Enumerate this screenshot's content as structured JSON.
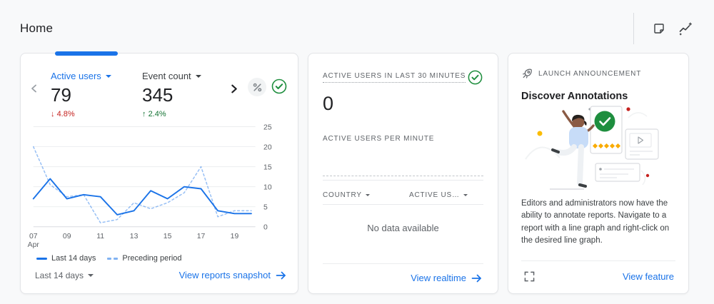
{
  "header": {
    "title": "Home",
    "icons": {
      "note": "customize-note-icon",
      "insights": "insights-sparkline-icon"
    }
  },
  "card_overview": {
    "metrics": [
      {
        "label": "Active users",
        "value": "79",
        "change_arrow": "↓",
        "change": "4.8%",
        "trend": "down"
      },
      {
        "label": "Event count",
        "value": "345",
        "change_arrow": "↑",
        "change": "2.4%",
        "trend": "up"
      }
    ],
    "range_selector": "Last 14 days",
    "footer_link": "View reports snapshot",
    "icons": {
      "sampling": "percent-sampling-icon",
      "quality": "data-quality-check-icon"
    }
  },
  "chart_data": {
    "type": "line",
    "x": [
      "07",
      "08",
      "09",
      "10",
      "11",
      "12",
      "13",
      "14",
      "15",
      "16",
      "17",
      "18",
      "19",
      "20"
    ],
    "x_tick_labels": [
      "07",
      "09",
      "11",
      "13",
      "15",
      "17",
      "19"
    ],
    "x_month": "Apr",
    "series": [
      {
        "name": "Last 14 days",
        "style": "solid",
        "values": [
          7,
          12,
          7,
          8,
          7.5,
          3,
          4,
          9,
          7,
          10,
          9.5,
          4,
          3.3,
          3.3
        ]
      },
      {
        "name": "Preceding period",
        "style": "dashed",
        "values": [
          20,
          10.5,
          7.5,
          8,
          1,
          1.8,
          6,
          4.5,
          6,
          8.5,
          15,
          2.5,
          4,
          4
        ]
      }
    ],
    "ylim": [
      0,
      25
    ],
    "yticks": [
      0,
      5,
      10,
      15,
      20,
      25
    ],
    "grid": true,
    "legend_position": "bottom"
  },
  "card_realtime": {
    "title": "ACTIVE USERS IN LAST 30 MINUTES",
    "value": "0",
    "subtitle": "ACTIVE USERS PER MINUTE",
    "table": {
      "columns": [
        "COUNTRY",
        "ACTIVE US…"
      ],
      "empty_message": "No data available"
    },
    "footer_link": "View realtime"
  },
  "card_announcement": {
    "eyebrow": "LAUNCH ANNOUNCEMENT",
    "title": "Discover Annotations",
    "body": "Editors and administrators now have the ability to annotate reports. Navigate to a report with a line graph and right-click on the desired line graph.",
    "footer_link": "View feature"
  },
  "colors": {
    "accent_blue": "#1a73e8",
    "negative_red": "#c5221f",
    "positive_green": "#137333",
    "success_green": "#1e8e3e",
    "text_primary": "#202124",
    "text_secondary": "#5f6368",
    "background": "#f8f9fa"
  }
}
